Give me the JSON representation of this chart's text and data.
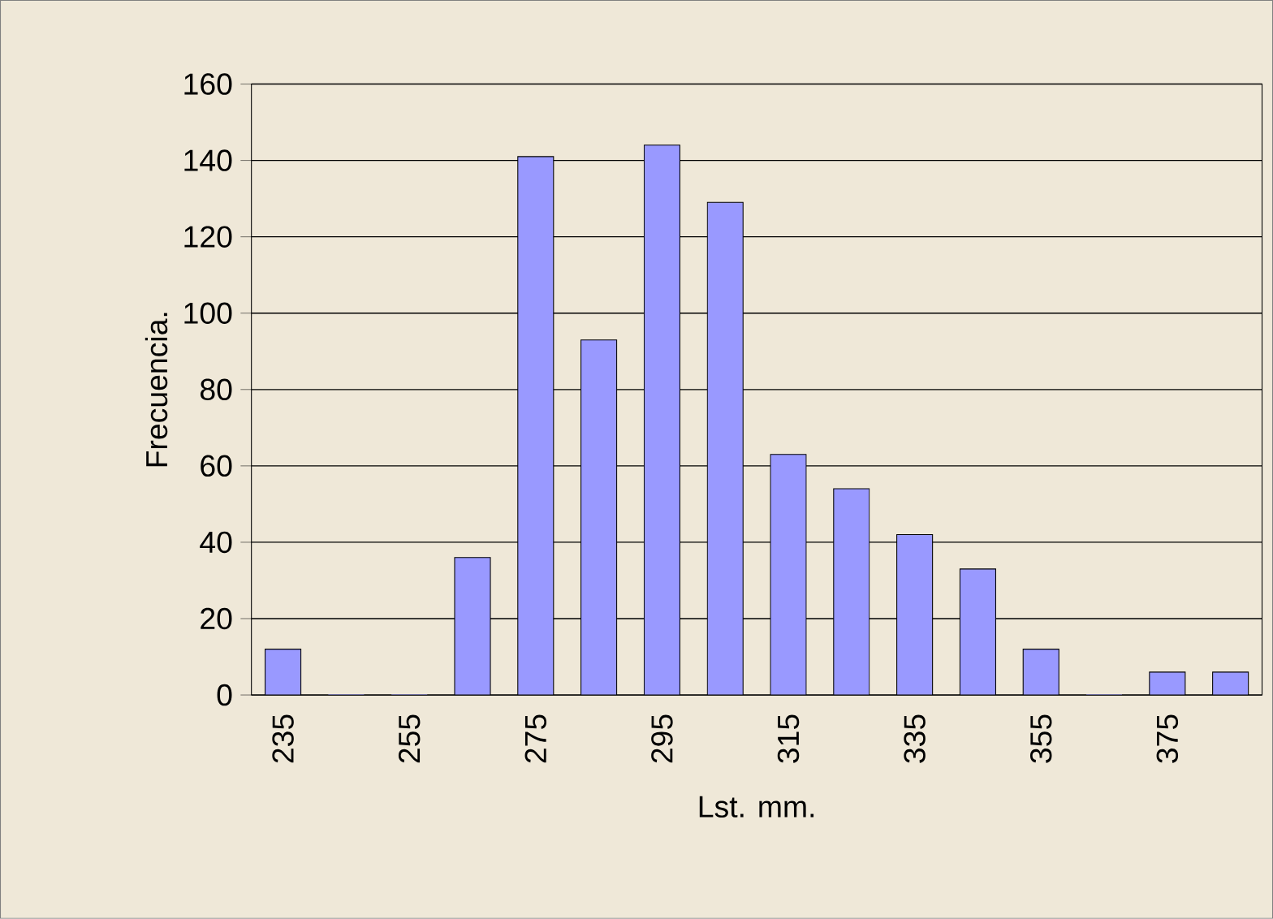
{
  "chart_data": {
    "type": "bar",
    "xlabel": "Lst. mm.",
    "ylabel": "Frecuencia.",
    "categories": [
      "235",
      null,
      "255",
      null,
      "275",
      null,
      "295",
      null,
      "315",
      null,
      "335",
      null,
      "355",
      null,
      "375",
      null
    ],
    "values": [
      12,
      0,
      0,
      36,
      141,
      93,
      144,
      129,
      63,
      54,
      42,
      33,
      12,
      0,
      6,
      6
    ],
    "color": "#9999ff",
    "ylim": [
      0,
      160
    ],
    "yticks": [
      0,
      20,
      40,
      60,
      80,
      100,
      120,
      140,
      160
    ],
    "grid": "y"
  }
}
